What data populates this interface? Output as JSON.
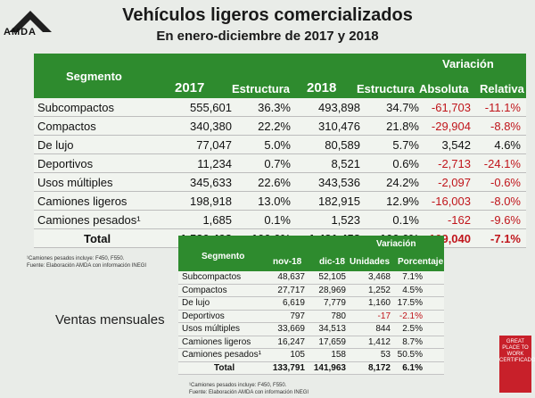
{
  "logo": {
    "text": "AMDA"
  },
  "title": "Vehículos ligeros comercializados",
  "subtitle": "En enero-diciembre de 2017 y 2018",
  "annual": {
    "headers": {
      "segmento": "Segmento",
      "y2017": "2017",
      "estructura1": "Estructura",
      "y2018": "2018",
      "estructura2": "Estructura",
      "variacion": "Variación",
      "absoluta": "Absoluta",
      "relativa": "Relativa"
    },
    "rows": [
      {
        "seg": "Subcompactos",
        "v2017": "555,601",
        "e2017": "36.3%",
        "v2018": "493,898",
        "e2018": "34.7%",
        "abs": "-61,703",
        "rel": "-11.1%",
        "abs_neg": true,
        "rel_neg": true
      },
      {
        "seg": "Compactos",
        "v2017": "340,380",
        "e2017": "22.2%",
        "v2018": "310,476",
        "e2018": "21.8%",
        "abs": "-29,904",
        "rel": "-8.8%",
        "abs_neg": true,
        "rel_neg": true
      },
      {
        "seg": "De lujo",
        "v2017": "77,047",
        "e2017": "5.0%",
        "v2018": "80,589",
        "e2018": "5.7%",
        "abs": "3,542",
        "rel": "4.6%",
        "abs_neg": false,
        "rel_neg": false
      },
      {
        "seg": "Deportivos",
        "v2017": "11,234",
        "e2017": "0.7%",
        "v2018": "8,521",
        "e2018": "0.6%",
        "abs": "-2,713",
        "rel": "-24.1%",
        "abs_neg": true,
        "rel_neg": true
      },
      {
        "seg": "Usos múltiples",
        "v2017": "345,633",
        "e2017": "22.6%",
        "v2018": "343,536",
        "e2018": "24.2%",
        "abs": "-2,097",
        "rel": "-0.6%",
        "abs_neg": true,
        "rel_neg": true
      },
      {
        "seg": "Camiones ligeros",
        "v2017": "198,918",
        "e2017": "13.0%",
        "v2018": "182,915",
        "e2018": "12.9%",
        "abs": "-16,003",
        "rel": "-8.0%",
        "abs_neg": true,
        "rel_neg": true
      },
      {
        "seg": "Camiones pesados¹",
        "v2017": "1,685",
        "e2017": "0.1%",
        "v2018": "1,523",
        "e2018": "0.1%",
        "abs": "-162",
        "rel": "-9.6%",
        "abs_neg": true,
        "rel_neg": true
      }
    ],
    "total": {
      "seg": "Total",
      "v2017": "1,530,498",
      "e2017": "100.0%",
      "v2018": "1,421,458",
      "e2018": "100.0%",
      "abs": "-109,040",
      "rel": "-7.1%"
    },
    "note": "¹Camiones pesados incluye: F450, F550.\nFuente: Elaboración AMDA con información INEGI"
  },
  "monthly": {
    "label": "Ventas mensuales",
    "headers": {
      "segmento": "Segmento",
      "nov": "nov-18",
      "dic": "dic-18",
      "variacion": "Variación",
      "unidades": "Unidades",
      "porcentaje": "Porcentaje"
    },
    "rows": [
      {
        "seg": "Subcompactos",
        "nov": "48,637",
        "dic": "52,105",
        "uni": "3,468",
        "pct": "7.1%",
        "neg": false
      },
      {
        "seg": "Compactos",
        "nov": "27,717",
        "dic": "28,969",
        "uni": "1,252",
        "pct": "4.5%",
        "neg": false
      },
      {
        "seg": "De lujo",
        "nov": "6,619",
        "dic": "7,779",
        "uni": "1,160",
        "pct": "17.5%",
        "neg": false
      },
      {
        "seg": "Deportivos",
        "nov": "797",
        "dic": "780",
        "uni": "-17",
        "pct": "-2.1%",
        "neg": true
      },
      {
        "seg": "Usos múltiples",
        "nov": "33,669",
        "dic": "34,513",
        "uni": "844",
        "pct": "2.5%",
        "neg": false
      },
      {
        "seg": "Camiones ligeros",
        "nov": "16,247",
        "dic": "17,659",
        "uni": "1,412",
        "pct": "8.7%",
        "neg": false
      },
      {
        "seg": "Camiones pesados¹",
        "nov": "105",
        "dic": "158",
        "uni": "53",
        "pct": "50.5%",
        "neg": false
      }
    ],
    "total": {
      "seg": "Total",
      "nov": "133,791",
      "dic": "141,963",
      "uni": "8,172",
      "pct": "6.1%"
    },
    "note": "¹Camiones pesados incluye: F450, F550.\nFuente: Elaboración AMDA con información INEGI"
  },
  "badge": {
    "text": "GREAT PLACE TO WORK CERTIFICADO"
  },
  "colors": {
    "header_green": "#2e8b2e",
    "negative_red": "#c0151b"
  }
}
